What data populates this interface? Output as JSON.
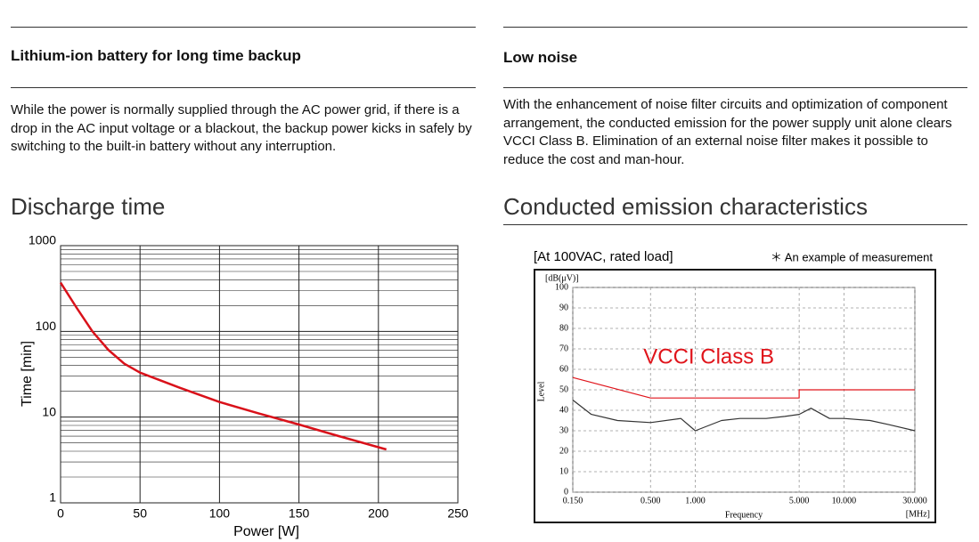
{
  "sections": [
    {
      "title": "Lithium-ion battery for long time backup",
      "text": "While the power is normally supplied through the AC power grid, if there is a drop in the AC input voltage or a blackout, the backup power kicks in safely by switching to the built-in battery without any interruption."
    },
    {
      "title": "Low noise",
      "text": "With the enhancement of noise filter circuits and optimization of component arrangement, the conducted emission for the power supply unit alone clears VCCI Class B. Elimination of an external noise filter makes it possible to reduce the cost and man-hour."
    }
  ],
  "chart_data": [
    {
      "type": "line",
      "title": "Discharge time",
      "xlabel": "Power [W]",
      "ylabel": "Time [min]",
      "ylog": true,
      "grid": true,
      "minor_grid": true,
      "xlim": [
        0,
        250
      ],
      "xticks": [
        0,
        50,
        100,
        150,
        200,
        250
      ],
      "ylim": [
        1,
        1000
      ],
      "yticks": [
        1,
        10,
        100,
        1000
      ],
      "series": [
        {
          "color": "#d9111a",
          "x": [
            0,
            10,
            20,
            30,
            40,
            50,
            75,
            100,
            125,
            150,
            175,
            205
          ],
          "values": [
            370,
            190,
            100,
            61,
            42,
            33,
            22,
            15,
            11,
            8.2,
            6.0,
            4.2
          ]
        }
      ]
    },
    {
      "type": "line",
      "title": "Conducted emission characteristics",
      "subtitle": "[At 100VAC, rated load]",
      "note": "＊ An example of measurement",
      "yunit": "[dB(μV)]",
      "ylabel": "Level",
      "xlabel": "Frequency",
      "xunit": "[MHz]",
      "xlog": true,
      "grid": true,
      "xlim": [
        0.15,
        30
      ],
      "xticks": [
        {
          "value": 0.15,
          "label": "0.150"
        },
        {
          "value": 0.5,
          "label": "0.500"
        },
        {
          "value": 1,
          "label": "1.000"
        },
        {
          "value": 5,
          "label": "5.000"
        },
        {
          "value": 10,
          "label": "10.000"
        },
        {
          "value": 30,
          "label": "30.000"
        }
      ],
      "ylim": [
        0,
        100
      ],
      "yticks": [
        0,
        10,
        20,
        30,
        40,
        50,
        60,
        70,
        80,
        90,
        100
      ],
      "series": [
        {
          "color": "#333333",
          "x": [
            0.15,
            0.2,
            0.3,
            0.5,
            0.8,
            1,
            1.5,
            2,
            3,
            4,
            5,
            6,
            8,
            10,
            15,
            20,
            30
          ],
          "values": [
            45,
            38,
            35,
            34,
            36,
            30,
            35,
            36,
            36,
            37,
            38,
            41,
            36,
            36,
            35,
            33,
            30
          ]
        },
        {
          "name": "VCCI Class B",
          "color": "#e0141b",
          "x": [
            0.15,
            0.5,
            5,
            5,
            30
          ],
          "values": [
            56,
            46,
            46,
            50,
            50
          ]
        }
      ]
    }
  ]
}
